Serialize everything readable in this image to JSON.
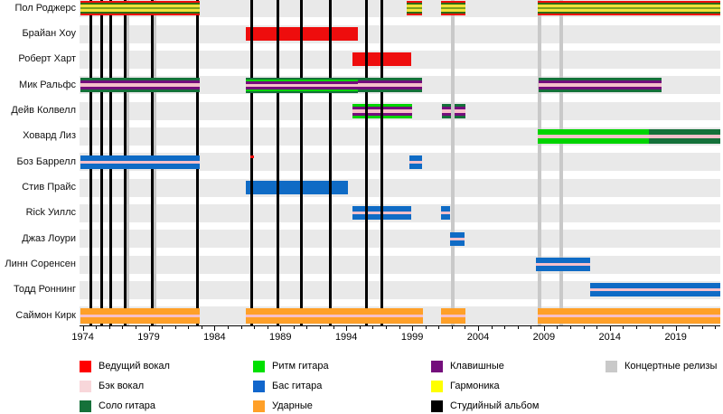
{
  "chart_data": {
    "type": "timeline",
    "description_not_rendered": "Gantt-style band membership timeline with vertical release lines",
    "x_axis": {
      "unit": "year",
      "range": [
        1973.75,
        2022.35
      ],
      "major_ticks": [
        1974,
        1979,
        1984,
        1989,
        1994,
        1999,
        2004,
        2009,
        2014,
        2019
      ],
      "minor_tick_every": 1
    },
    "colors": {
      "lead": "#ee0d0d",
      "back": "#f6c0ca",
      "solo": "#15713a",
      "rhythm": "#00d400",
      "bass": "#0f6bc5",
      "drums": "#ffa028",
      "keys": "#740e7c",
      "harm": "#f2e23a",
      "pg_dark": "#2e6b15",
      "pg_mid": "#7aa01e",
      "album_line": "#000000",
      "live_line": "#c9c9c9",
      "row_band": "#e9e9e9"
    },
    "stripe_sets": {
      "paul": [
        [
          "lead",
          2
        ],
        [
          "pg_dark",
          2
        ],
        [
          "harm",
          3
        ],
        [
          "pg_mid",
          2
        ],
        [
          "harm",
          3
        ],
        [
          "pg_dark",
          2
        ],
        [
          "lead",
          2
        ]
      ],
      "lead_solid": [
        [
          "lead",
          15
        ]
      ],
      "mick": [
        [
          "solo",
          3
        ],
        [
          "keys",
          3
        ],
        [
          "back",
          4
        ],
        [
          "keys",
          3
        ],
        [
          "solo",
          3
        ]
      ],
      "mick_r": [
        [
          "solo",
          2
        ],
        [
          "rhythm",
          2
        ],
        [
          "keys",
          3
        ],
        [
          "back",
          3
        ],
        [
          "keys",
          3
        ],
        [
          "rhythm",
          2
        ],
        [
          "solo",
          2
        ]
      ],
      "colwell_r": [
        [
          "rhythm",
          3
        ],
        [
          "keys",
          3
        ],
        [
          "back",
          4
        ],
        [
          "keys",
          3
        ],
        [
          "rhythm",
          3
        ]
      ],
      "colwell_s": [
        [
          "solo",
          3
        ],
        [
          "keys",
          3
        ],
        [
          "back",
          4
        ],
        [
          "keys",
          3
        ],
        [
          "solo",
          3
        ]
      ],
      "leese_r": [
        [
          "rhythm",
          6
        ],
        [
          "back",
          4
        ],
        [
          "rhythm",
          6
        ]
      ],
      "leese_s": [
        [
          "solo",
          6
        ],
        [
          "back",
          4
        ],
        [
          "solo",
          6
        ]
      ],
      "bass": [
        [
          "bass",
          6
        ],
        [
          "back",
          3
        ],
        [
          "bass",
          6
        ]
      ],
      "bass_solid": [
        [
          "bass",
          15
        ]
      ],
      "drums": [
        [
          "drums",
          7
        ],
        [
          "back",
          3
        ],
        [
          "drums",
          7
        ]
      ],
      "red_dash": [
        [
          "lead",
          3
        ]
      ]
    },
    "members": [
      {
        "name": "Пол Роджерс",
        "over_lines": true,
        "periods": [
          {
            "start": 1973.8,
            "end": 1982.85,
            "stripes": "paul"
          },
          {
            "start": 1998.55,
            "end": 1999.75,
            "stripes": "paul"
          },
          {
            "start": 2001.2,
            "end": 2003.05,
            "stripes": "paul"
          },
          {
            "start": 2008.5,
            "end": 2022.35,
            "stripes": "paul"
          }
        ]
      },
      {
        "name": "Брайан Хоу",
        "over_lines": false,
        "periods": [
          {
            "start": 1986.4,
            "end": 1994.85,
            "stripes": "lead_solid"
          }
        ]
      },
      {
        "name": "Роберт Харт",
        "over_lines": false,
        "periods": [
          {
            "start": 1994.5,
            "end": 1998.9,
            "stripes": "lead_solid"
          }
        ]
      },
      {
        "name": "Мик Ральфс",
        "over_lines": true,
        "periods": [
          {
            "start": 1973.8,
            "end": 1982.85,
            "stripes": "mick"
          },
          {
            "start": 1986.4,
            "end": 1994.85,
            "stripes": "mick_r"
          },
          {
            "start": 1994.85,
            "end": 1999.75,
            "stripes": "mick"
          },
          {
            "start": 2008.6,
            "end": 2017.9,
            "stripes": "mick"
          }
        ]
      },
      {
        "name": "Дейв Колвелл",
        "over_lines": false,
        "periods": [
          {
            "start": 1994.5,
            "end": 1999.0,
            "stripes": "colwell_r"
          },
          {
            "start": 2001.25,
            "end": 2003.05,
            "stripes": "colwell_s"
          }
        ]
      },
      {
        "name": "Ховард Лиз",
        "over_lines": true,
        "periods": [
          {
            "start": 2008.5,
            "end": 2016.95,
            "stripes": "leese_r"
          },
          {
            "start": 2016.95,
            "end": 2022.35,
            "stripes": "leese_s"
          }
        ]
      },
      {
        "name": "Боз Баррелл",
        "over_lines": true,
        "periods": [
          {
            "start": 1973.8,
            "end": 1982.85,
            "stripes": "bass"
          },
          {
            "start": 1986.7,
            "end": 1987.0,
            "stripes": "red_dash",
            "align": "top"
          },
          {
            "start": 1998.8,
            "end": 1999.75,
            "stripes": "bass"
          }
        ]
      },
      {
        "name": "Стив Прайс",
        "over_lines": false,
        "periods": [
          {
            "start": 1986.4,
            "end": 1994.1,
            "stripes": "bass_solid"
          }
        ]
      },
      {
        "name": "Rick Уиллс",
        "over_lines": false,
        "periods": [
          {
            "start": 1994.5,
            "end": 1998.9,
            "stripes": "bass"
          },
          {
            "start": 2001.2,
            "end": 2001.85,
            "stripes": "bass"
          }
        ]
      },
      {
        "name": "Джаз Лоури",
        "over_lines": true,
        "periods": [
          {
            "start": 2001.85,
            "end": 2002.95,
            "stripes": "bass"
          }
        ]
      },
      {
        "name": "Линн Соренсен",
        "over_lines": true,
        "periods": [
          {
            "start": 2008.4,
            "end": 2012.5,
            "stripes": "bass"
          }
        ]
      },
      {
        "name": "Тодд Роннинг",
        "over_lines": true,
        "periods": [
          {
            "start": 2012.5,
            "end": 2022.35,
            "stripes": "bass"
          }
        ]
      },
      {
        "name": "Саймон Кирк",
        "over_lines": true,
        "periods": [
          {
            "start": 1973.8,
            "end": 1982.85,
            "stripes": "drums"
          },
          {
            "start": 1986.4,
            "end": 1999.8,
            "stripes": "drums"
          },
          {
            "start": 2001.2,
            "end": 2003.05,
            "stripes": "drums"
          },
          {
            "start": 2008.5,
            "end": 2022.35,
            "stripes": "drums"
          }
        ]
      }
    ],
    "studio_albums": {
      "label": "Студийный альбом",
      "years": [
        1974.6,
        1975.4,
        1976.15,
        1977.2,
        1979.3,
        1982.7,
        1986.8,
        1988.8,
        1990.6,
        1992.8,
        1995.5,
        1996.7
      ]
    },
    "live_releases": {
      "label": "Концертные релизы",
      "years": [
        1977.4,
        1979.45,
        2002.1,
        2008.65,
        2010.3
      ]
    },
    "legend_columns": [
      [
        {
          "label": "Ведущий вокал",
          "color": "#ff0000"
        },
        {
          "label": "Бэк вокал",
          "color": "#f8d7da"
        },
        {
          "label": "Соло гитара",
          "color": "#15713a"
        }
      ],
      [
        {
          "label": "Ритм гитара",
          "color": "#00e000"
        },
        {
          "label": "Бас гитара",
          "color": "#1166cc"
        },
        {
          "label": "Ударные",
          "color": "#ffa028"
        }
      ],
      [
        {
          "label": "Клавишные",
          "color": "#740e7c"
        },
        {
          "label": "Гармоника",
          "color": "#ffff00"
        },
        {
          "label": "Студийный альбом",
          "color": "#000000"
        }
      ],
      [
        {
          "label": "Концертные релизы",
          "color": "#c9c9c9"
        }
      ]
    ]
  }
}
